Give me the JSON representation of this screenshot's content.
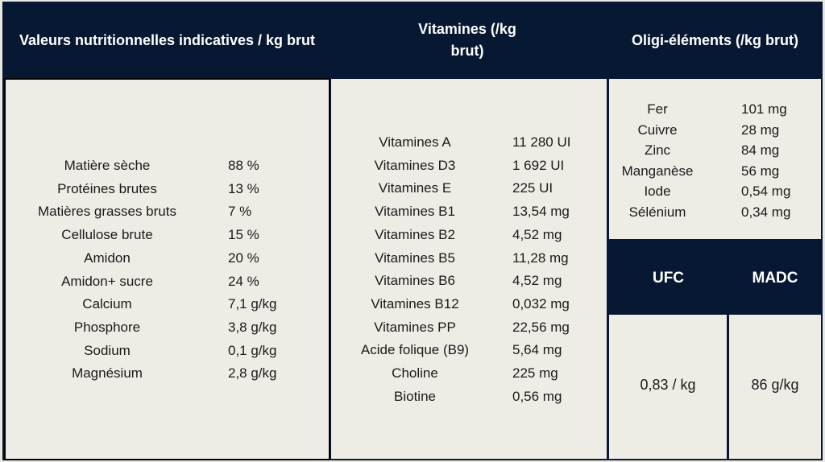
{
  "headers": {
    "nutrition": "Valeurs nutritionnelles indicatives / kg brut",
    "vitamins": "Vitamines (/kg brut)",
    "trace": "Oligi-éléments (/kg brut)",
    "ufc": "UFC",
    "madc": "MADC"
  },
  "nutrition": [
    {
      "label": "Matière sèche",
      "value": "88 %"
    },
    {
      "label": "Protéines brutes",
      "value": "13 %"
    },
    {
      "label": "Matières grasses bruts",
      "value": "7 %"
    },
    {
      "label": "Cellulose brute",
      "value": "15 %"
    },
    {
      "label": "Amidon",
      "value": "20 %"
    },
    {
      "label": "Amidon+ sucre",
      "value": "24 %"
    },
    {
      "label": "Calcium",
      "value": "7,1 g/kg"
    },
    {
      "label": "Phosphore",
      "value": "3,8 g/kg"
    },
    {
      "label": "Sodium",
      "value": "0,1 g/kg"
    },
    {
      "label": "Magnésium",
      "value": "2,8 g/kg"
    }
  ],
  "vitamins": [
    {
      "label": "Vitamines A",
      "value": "11 280 UI"
    },
    {
      "label": "Vitamines D3",
      "value": "1 692 UI"
    },
    {
      "label": "Vitamines E",
      "value": "225 UI"
    },
    {
      "label": "Vitamines B1",
      "value": "13,54 mg"
    },
    {
      "label": "Vitamines B2",
      "value": "4,52 mg"
    },
    {
      "label": "Vitamines B5",
      "value": "11,28 mg"
    },
    {
      "label": "Vitamines B6",
      "value": "4,52 mg"
    },
    {
      "label": "Vitamines B12",
      "value": "0,032 mg"
    },
    {
      "label": "Vitamines PP",
      "value": "22,56 mg"
    },
    {
      "label": "Acide folique (B9)",
      "value": "5,64 mg"
    },
    {
      "label": "Choline",
      "value": "225 mg"
    },
    {
      "label": "Biotine",
      "value": "0,56 mg"
    }
  ],
  "trace": [
    {
      "label": "Fer",
      "value": "101 mg"
    },
    {
      "label": "Cuivre",
      "value": "28 mg"
    },
    {
      "label": "Zinc",
      "value": "84 mg"
    },
    {
      "label": "Manganèse",
      "value": "56 mg"
    },
    {
      "label": "Iode",
      "value": "0,54 mg"
    },
    {
      "label": "Sélénium",
      "value": "0,34 mg"
    }
  ],
  "ufc_value": "0,83 / kg",
  "madc_value": "86 g/kg"
}
